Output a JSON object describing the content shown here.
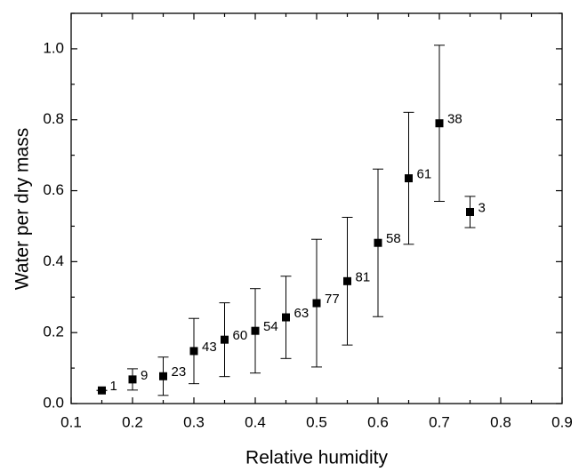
{
  "chart_data": {
    "type": "scatter",
    "x_label": "Relative humidity",
    "y_label": "Water per dry mass",
    "x": [
      0.15,
      0.2,
      0.25,
      0.3,
      0.35,
      0.4,
      0.45,
      0.5,
      0.55,
      0.6,
      0.65,
      0.7,
      0.75
    ],
    "series": [
      {
        "color": "#000000",
        "values": [
          0.037,
          0.068,
          0.077,
          0.148,
          0.18,
          0.205,
          0.243,
          0.283,
          0.345,
          0.453,
          0.635,
          0.79,
          0.54
        ],
        "errors": [
          0,
          0.03,
          0.054,
          0.092,
          0.104,
          0.119,
          0.116,
          0.18,
          0.18,
          0.208,
          0.186,
          0.22,
          0.044
        ],
        "point_labels": [
          "1",
          "9",
          "23",
          "43",
          "60",
          "54",
          "63",
          "77",
          "81",
          "58",
          "61",
          "38",
          "3"
        ]
      }
    ],
    "xlim": [
      0.1,
      0.9
    ],
    "xticks": [
      0.1,
      0.2,
      0.3,
      0.4,
      0.5,
      0.6,
      0.7,
      0.8,
      0.9
    ],
    "ylim": [
      0,
      1.1
    ],
    "yticks": [
      {
        "value": 0,
        "label": "0.0"
      },
      0.2,
      0.4,
      0.6,
      0.8,
      {
        "value": 1,
        "label": "1.0"
      }
    ]
  }
}
